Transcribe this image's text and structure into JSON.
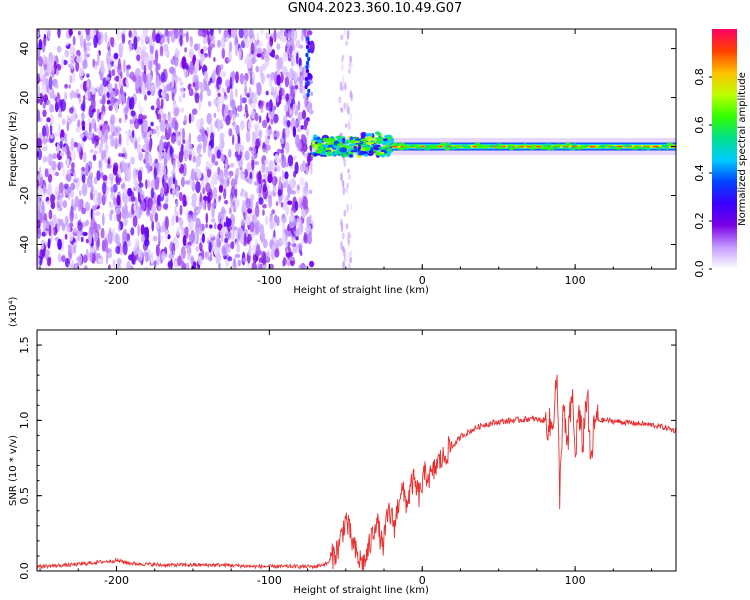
{
  "title": "GN04.2023.360.10.49.G07",
  "chart_data": [
    {
      "type": "heatmap",
      "xlabel": "Height of straight line (km)",
      "ylabel": "Frequency (Hz)",
      "xlim": [
        -252,
        166
      ],
      "ylim": [
        -50,
        48
      ],
      "xticks": [
        -200,
        -100,
        0,
        100
      ],
      "xtick_labels": [
        "-200",
        "-100",
        "0",
        "100"
      ],
      "yticks": [
        40,
        20,
        0,
        -20,
        -40
      ],
      "ytick_labels": [
        "40",
        "20",
        "0",
        "-20",
        "-40"
      ],
      "colorbar": {
        "label": "Normalized spectral amplitude",
        "range": [
          0.0,
          1.0
        ],
        "ticks": [
          0.0,
          0.2,
          0.4,
          0.6,
          0.8
        ],
        "tick_labels": [
          "0.0",
          "0.2",
          "0.4",
          "0.6",
          "0.8"
        ],
        "colors": [
          "#ffffff",
          "#c49bff",
          "#7b00e6",
          "#3a00ff",
          "#0044ff",
          "#00ccff",
          "#00e08a",
          "#33ff00",
          "#bfff00",
          "#ffbf00",
          "#ff4000",
          "#ff0066"
        ]
      },
      "regions": [
        {
          "name": "scattered noise",
          "x": [
            -252,
            -72
          ],
          "freq": [
            -50,
            48
          ],
          "amplitude": 0.12
        },
        {
          "name": "transition",
          "x": [
            -72,
            -20
          ],
          "freq": [
            -5,
            6
          ],
          "amplitude": 0.45
        },
        {
          "name": "carrier line",
          "x": [
            -20,
            166
          ],
          "freq": [
            0,
            0
          ],
          "amplitude": 0.95
        }
      ]
    },
    {
      "type": "line",
      "xlabel": "Height of straight line (km)",
      "ylabel": "SNR (10 * v/v)",
      "y_scale_note": "(x10⁴)",
      "xlim": [
        -252,
        166
      ],
      "ylim": [
        0,
        1.6
      ],
      "xticks": [
        -200,
        -100,
        0,
        100
      ],
      "xtick_labels": [
        "-200",
        "-100",
        "0",
        "100"
      ],
      "yticks": [
        0.0,
        0.5,
        1.0,
        1.5
      ],
      "ytick_labels": [
        "0.0",
        "0.5",
        "1.0",
        "1.5"
      ],
      "series": [
        {
          "color": "#e83030",
          "x": [
            -252,
            -230,
            -210,
            -200,
            -190,
            -170,
            -150,
            -130,
            -110,
            -90,
            -70,
            -62,
            -55,
            -50,
            -46,
            -42,
            -38,
            -34,
            -30,
            -26,
            -22,
            -18,
            -14,
            -10,
            -6,
            -2,
            2,
            6,
            10,
            14,
            18,
            22,
            26,
            30,
            35,
            40,
            50,
            60,
            70,
            80,
            85,
            88,
            90,
            92,
            95,
            98,
            100,
            102,
            105,
            108,
            110,
            113,
            120,
            130,
            140,
            150,
            160,
            166
          ],
          "y": [
            0.03,
            0.04,
            0.06,
            0.07,
            0.05,
            0.04,
            0.04,
            0.04,
            0.03,
            0.03,
            0.03,
            0.05,
            0.15,
            0.35,
            0.2,
            0.08,
            0.05,
            0.18,
            0.35,
            0.15,
            0.4,
            0.3,
            0.55,
            0.45,
            0.6,
            0.5,
            0.65,
            0.62,
            0.72,
            0.75,
            0.82,
            0.85,
            0.9,
            0.92,
            0.95,
            0.97,
            0.99,
            1.0,
            1.01,
            1.0,
            0.95,
            1.3,
            0.5,
            1.1,
            0.8,
            1.2,
            0.75,
            1.05,
            0.85,
            1.22,
            0.7,
            1.0,
            1.0,
            0.99,
            0.98,
            0.97,
            0.95,
            0.93
          ]
        }
      ]
    }
  ]
}
